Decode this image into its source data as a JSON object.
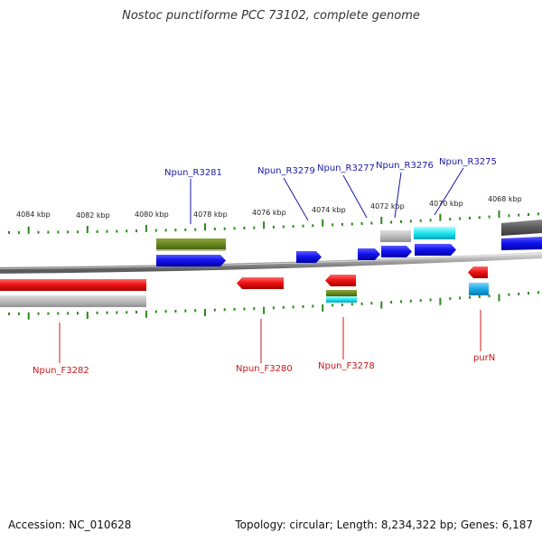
{
  "title": "Nostoc punctiforme PCC 73102, complete genome",
  "footer": {
    "accession": "Accession: NC_010628",
    "summary": "Topology: circular; Length: 8,234,322 bp; Genes: 6,187"
  },
  "colors": {
    "reverse_label": "#1a1aa6",
    "forward_label": "#c81818",
    "tick": "#2a8a1a",
    "backbone": "#8a8a8a"
  },
  "scale_labels": [
    "4084 kbp",
    "4082 kbp",
    "4080 kbp",
    "4078 kbp",
    "4076 kbp",
    "4074 kbp",
    "4072 kbp",
    "4070 kbp",
    "4068 kbp"
  ],
  "reverse_genes": [
    "Npun_R3281",
    "Npun_R3279",
    "Npun_R3277",
    "Npun_R3276",
    "Npun_R3275"
  ],
  "forward_genes": [
    "Npun_F3282",
    "Npun_F3280",
    "Npun_F3278",
    "purN"
  ]
}
